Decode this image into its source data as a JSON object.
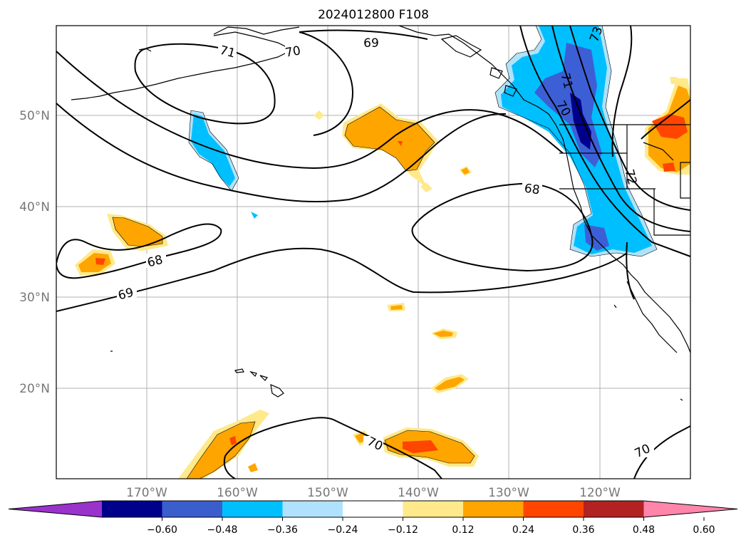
{
  "title": "2024012800 F108",
  "map": {
    "lat_labels": [
      "50°N",
      "40°N",
      "30°N",
      "20°N"
    ],
    "lon_labels": [
      "170°W",
      "160°W",
      "150°W",
      "140°W",
      "130°W",
      "120°W"
    ],
    "contour_labels": [
      "71",
      "69",
      "70",
      "68",
      "69",
      "68",
      "70",
      "70",
      "73",
      "71",
      "70",
      "72"
    ],
    "shading_colors": {
      "neg_light": "#b0e2fa",
      "neg_mid": "#00bfff",
      "neg_strong": "#3d5fd6",
      "neg_darkest": "#00008b",
      "pos_light": "#ffe98a",
      "pos_mid": "#ffa500",
      "pos_strong": "#ff4500",
      "pos_darkest": "#b22222"
    }
  },
  "colorbar": {
    "ticks": [
      "−0.60",
      "−0.48",
      "−0.36",
      "−0.24",
      "−0.12",
      "0.12",
      "0.24",
      "0.36",
      "0.48",
      "0.60"
    ],
    "colors": [
      "#9933cc",
      "#00008b",
      "#3a5fcd",
      "#00bfff",
      "#b0e2ff",
      "#ffffff",
      "#ffe98a",
      "#ffa500",
      "#ff4500",
      "#b22222",
      "#ff85ab"
    ]
  }
}
